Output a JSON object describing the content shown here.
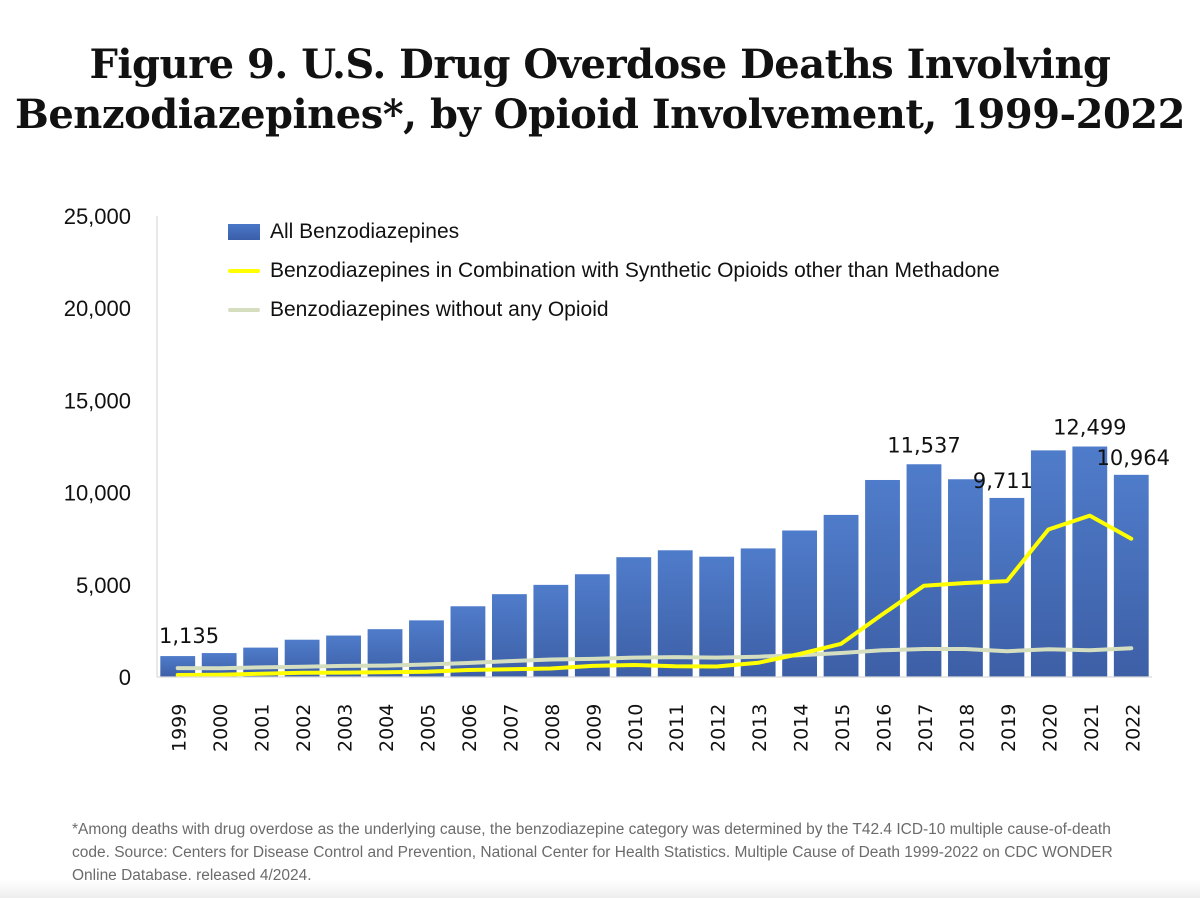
{
  "title": {
    "line1": "Figure 9. U.S. Drug Overdose Deaths Involving",
    "line2": "Benzodiazepines*, by Opioid Involvement, 1999-2022"
  },
  "legend": {
    "items": [
      {
        "label": "All Benzodiazepines",
        "type": "bar",
        "color": "#4472c4"
      },
      {
        "label": "Benzodiazepines in Combination with Synthetic Opioids other than Methadone",
        "type": "line",
        "color": "#ffff00"
      },
      {
        "label": "Benzodiazepines without any Opioid",
        "type": "line",
        "color": "#d5dfc0"
      }
    ]
  },
  "footnote": "*Among deaths with drug overdose as the underlying cause, the benzodiazepine category was determined by the T42.4 ICD-10 multiple cause-of-death code. Source: Centers for Disease Control and Prevention, National Center for Health Statistics. Multiple Cause of Death 1999-2022 on CDC WONDER Online Database, released 4/2024.",
  "chart_data": {
    "type": "bar",
    "title": "Figure 9. U.S. Drug Overdose Deaths Involving Benzodiazepines*, by Opioid Involvement, 1999-2022",
    "xlabel": "",
    "ylabel": "",
    "ylim": [
      0,
      25000
    ],
    "yticks": [
      0,
      5000,
      10000,
      15000,
      20000,
      25000
    ],
    "ytick_labels": [
      "0",
      "5,000",
      "10,000",
      "15,000",
      "20,000",
      "25,000"
    ],
    "grid": false,
    "legend_position": "top-left",
    "categories": [
      "1999",
      "2000",
      "2001",
      "2002",
      "2003",
      "2004",
      "2005",
      "2006",
      "2007",
      "2008",
      "2009",
      "2010",
      "2011",
      "2012",
      "2013",
      "2014",
      "2015",
      "2016",
      "2017",
      "2018",
      "2019",
      "2020",
      "2021",
      "2022"
    ],
    "series": [
      {
        "name": "All Benzodiazepines",
        "type": "bar",
        "color": "#4472c4",
        "values": [
          1135,
          1298,
          1594,
          2022,
          2248,
          2594,
          3071,
          3836,
          4492,
          4997,
          5573,
          6497,
          6872,
          6524,
          6973,
          7945,
          8791,
          10684,
          11537,
          10724,
          9711,
          12290,
          12499,
          10964
        ]
      },
      {
        "name": "Benzodiazepines in Combination with Synthetic Opioids other than Methadone",
        "type": "line",
        "color": "#ffff00",
        "values": [
          110,
          120,
          180,
          230,
          240,
          260,
          280,
          380,
          420,
          460,
          600,
          650,
          580,
          570,
          770,
          1250,
          1800,
          3400,
          4950,
          5100,
          5200,
          8000,
          8750,
          7500
        ]
      },
      {
        "name": "Benzodiazepines without any Opioid",
        "type": "line",
        "color": "#d5dfc0",
        "values": [
          480,
          470,
          520,
          560,
          600,
          620,
          680,
          760,
          860,
          950,
          980,
          1050,
          1080,
          1050,
          1100,
          1180,
          1300,
          1450,
          1520,
          1520,
          1400,
          1500,
          1450,
          1560
        ]
      }
    ],
    "data_labels": [
      {
        "category": "1999",
        "text": "1,135"
      },
      {
        "category": "2017",
        "text": "11,537"
      },
      {
        "category": "2019",
        "text": "9,711"
      },
      {
        "category": "2021",
        "text": "12,499"
      },
      {
        "category": "2022",
        "text": "10,964"
      }
    ]
  }
}
